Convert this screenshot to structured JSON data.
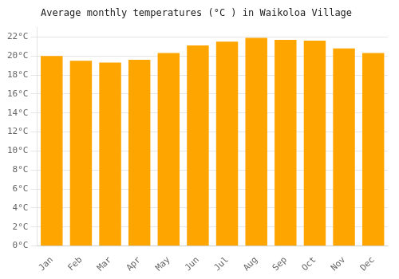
{
  "chart_data": {
    "type": "bar",
    "title": "Average monthly temperatures (°C ) in Waikoloa Village",
    "categories": [
      "Jan",
      "Feb",
      "Mar",
      "Apr",
      "May",
      "Jun",
      "Jul",
      "Aug",
      "Sep",
      "Oct",
      "Nov",
      "Dec"
    ],
    "values": [
      20.0,
      19.5,
      19.3,
      19.6,
      20.3,
      21.1,
      21.5,
      21.9,
      21.7,
      21.6,
      20.8,
      20.3
    ],
    "color": "#FFA500",
    "ylim": [
      0,
      23
    ],
    "yticks": [
      {
        "value": 0,
        "label": "0°C"
      },
      {
        "value": 2,
        "label": "2°C"
      },
      {
        "value": 4,
        "label": "4°C"
      },
      {
        "value": 6,
        "label": "6°C"
      },
      {
        "value": 8,
        "label": "8°C"
      },
      {
        "value": 10,
        "label": "10°C"
      },
      {
        "value": 12,
        "label": "12°C"
      },
      {
        "value": 14,
        "label": "14°C"
      },
      {
        "value": 16,
        "label": "16°C"
      },
      {
        "value": 18,
        "label": "18°C"
      },
      {
        "value": 20,
        "label": "20°C"
      },
      {
        "value": 22,
        "label": "22°C"
      }
    ],
    "grid": true
  }
}
